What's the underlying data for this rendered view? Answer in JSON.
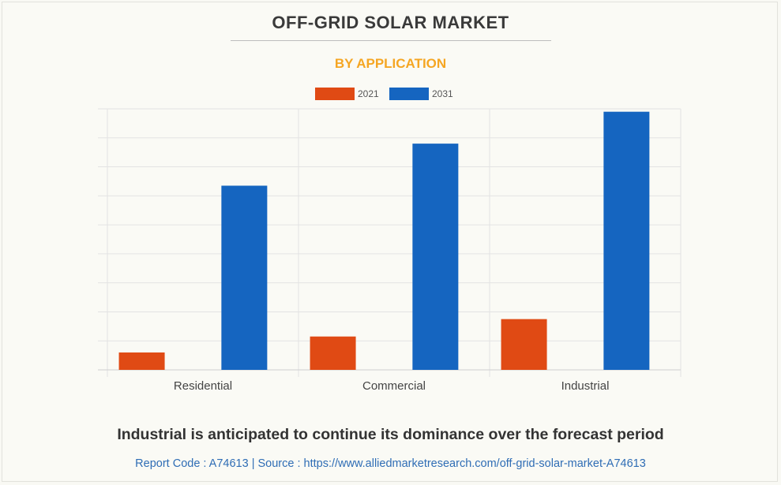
{
  "chart_data": {
    "type": "bar",
    "title": "OFF-GRID SOLAR MARKET",
    "subtitle": "BY APPLICATION",
    "categories": [
      "Residential",
      "Commercial",
      "Industrial"
    ],
    "series": [
      {
        "name": "2021",
        "color": "#e04a14",
        "values": [
          6,
          11.5,
          17.5
        ]
      },
      {
        "name": "2031",
        "color": "#1565c0",
        "values": [
          63.5,
          78,
          89
        ]
      }
    ],
    "ylim": [
      0,
      90
    ],
    "xlabel": "",
    "ylabel": "",
    "grid": true,
    "legend_position": "top-center"
  },
  "caption": "Industrial is anticipated to continue its dominance over the forecast period",
  "footer": "Report Code : A74613  |  Source : https://www.alliedmarketresearch.com/off-grid-solar-market-A74613"
}
